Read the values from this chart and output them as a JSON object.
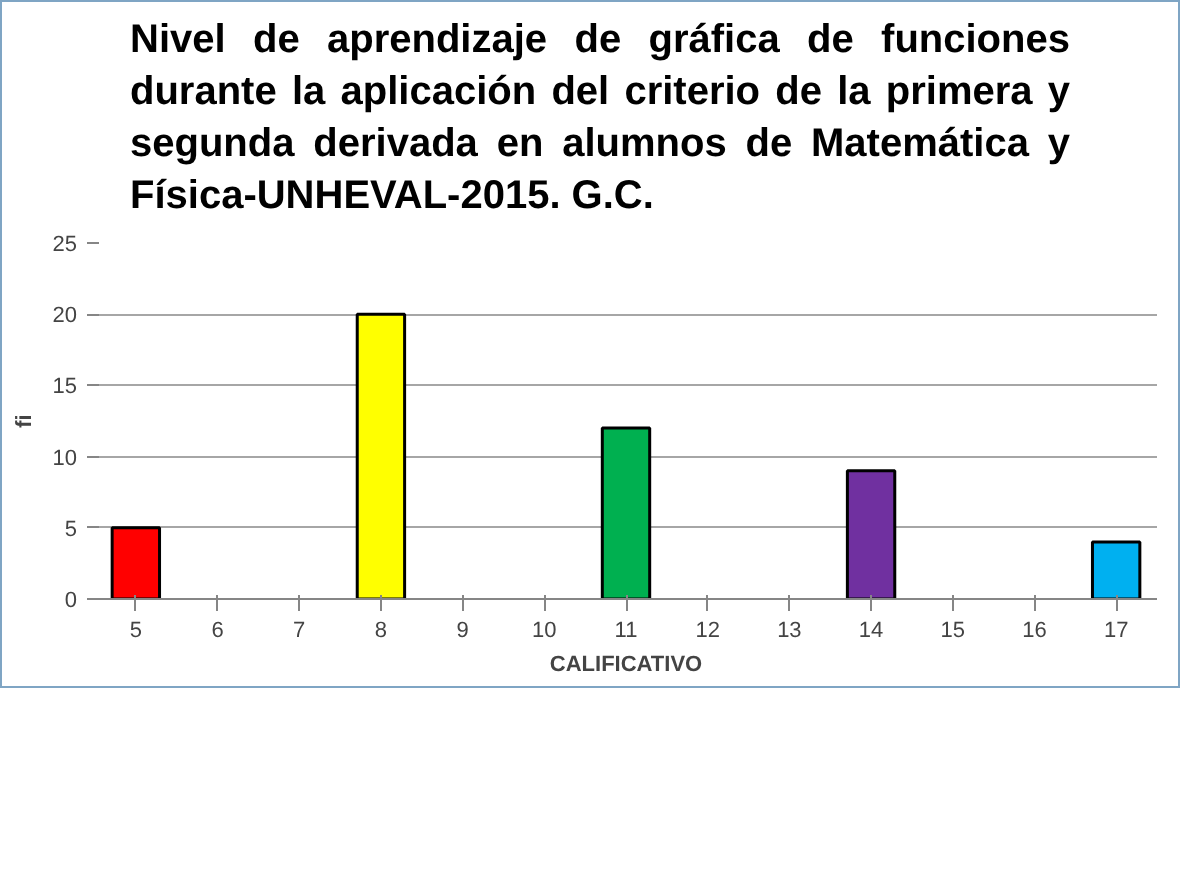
{
  "chart_data": {
    "type": "bar",
    "title": "Nivel de aprendizaje de gráfica de funciones durante la aplicación del criterio de la primera y segunda derivada en alumnos de Matemática y Física-UNHEVAL-2015. G.C.",
    "categories": [
      "5",
      "6",
      "7",
      "8",
      "9",
      "10",
      "11",
      "12",
      "13",
      "14",
      "15",
      "16",
      "17"
    ],
    "values": [
      5,
      null,
      null,
      20,
      null,
      null,
      12,
      null,
      null,
      9,
      null,
      null,
      4
    ],
    "colors": [
      "#ff0000",
      null,
      null,
      "#ffff00",
      null,
      null,
      "#00b050",
      null,
      null,
      "#7030a0",
      null,
      null,
      "#00b0f0"
    ],
    "xlabel": "CALIFICATIVO",
    "ylabel": "fi",
    "ylim": [
      0,
      25
    ],
    "yticks": [
      0,
      5,
      10,
      15,
      20,
      25
    ],
    "grid": "y"
  }
}
